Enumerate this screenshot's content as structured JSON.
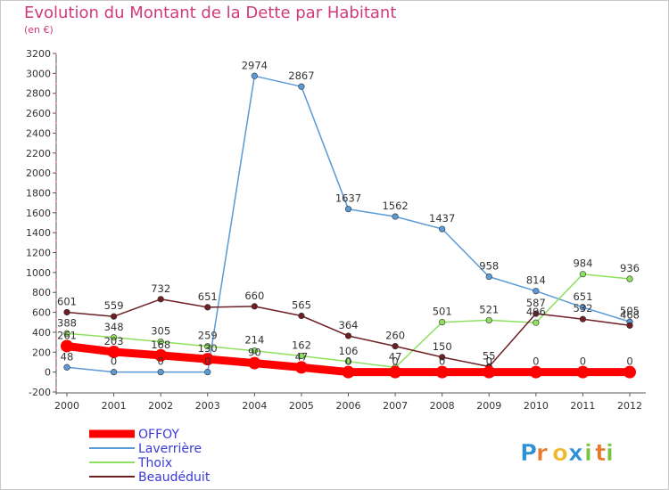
{
  "title": "Evolution du Montant de la Dette par Habitant",
  "subtitle": "(en €)",
  "logo_text": "Proxiti",
  "chart_data": {
    "type": "line",
    "title": "Evolution du Montant de la Dette par Habitant",
    "subtitle": "(en €)",
    "x": [
      2000,
      2001,
      2002,
      2003,
      2004,
      2005,
      2006,
      2007,
      2008,
      2009,
      2010,
      2011,
      2012
    ],
    "ylim": [
      -200,
      3200
    ],
    "yticks": [
      -200,
      0,
      200,
      400,
      600,
      800,
      1000,
      1200,
      1400,
      1600,
      1800,
      2000,
      2200,
      2400,
      2600,
      2800,
      3000,
      3200
    ],
    "grid": false,
    "legend": "bottom-left",
    "series": [
      {
        "name": "OFFOY",
        "color": "#ff0000",
        "values": [
          261,
          203,
          168,
          130,
          90,
          47,
          0,
          0,
          0,
          0,
          0,
          0,
          0
        ]
      },
      {
        "name": "Laverrière",
        "color": "#5a9ad6",
        "values": [
          48,
          0,
          0,
          0,
          2974,
          2867,
          1637,
          1562,
          1437,
          958,
          814,
          651,
          505
        ]
      },
      {
        "name": "Thoix",
        "color": "#8ee060",
        "values": [
          388,
          348,
          305,
          259,
          214,
          162,
          106,
          47,
          501,
          521,
          496,
          984,
          936
        ]
      },
      {
        "name": "Beaudéduit",
        "color": "#6e1f24",
        "values": [
          601,
          559,
          732,
          651,
          660,
          565,
          364,
          260,
          150,
          55,
          587,
          532,
          468
        ]
      }
    ]
  }
}
